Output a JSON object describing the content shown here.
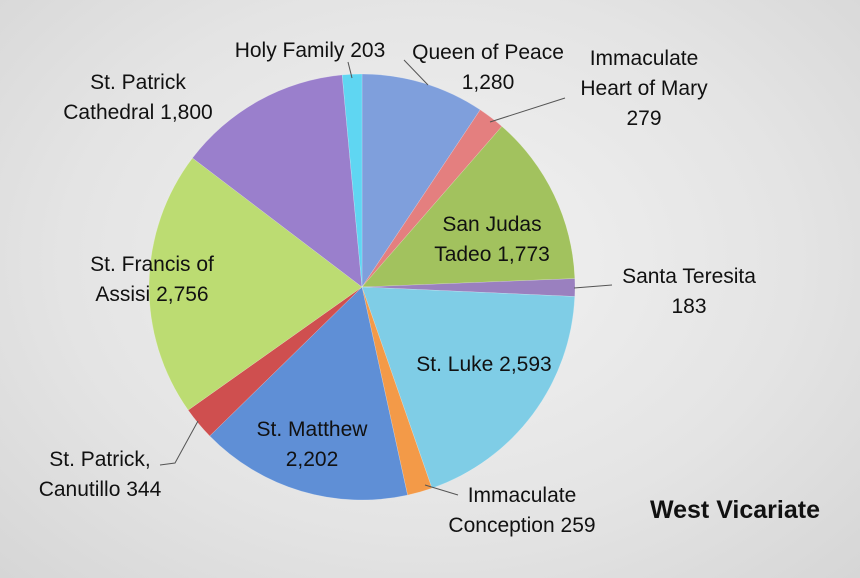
{
  "chart_data": {
    "type": "pie",
    "title": "West Vicariate",
    "categories": [
      "Queen of Peace",
      "Immaculate Heart of Mary",
      "San Judas Tadeo",
      "Santa Teresita",
      "St. Luke",
      "Immaculate Conception",
      "St. Matthew",
      "St. Patrick, Canutillo",
      "St. Francis of Assisi",
      "St. Patrick Cathedral",
      "Holy Family"
    ],
    "values": [
      1280,
      279,
      1773,
      183,
      2593,
      259,
      2202,
      344,
      2756,
      1800,
      203
    ],
    "value_labels": [
      "1,280",
      "279",
      "1,773",
      "183",
      "2,593",
      "259",
      "2,202",
      "344",
      "2,756",
      "1,800",
      "203"
    ],
    "colors": [
      "#7f9fdc",
      "#e47f7f",
      "#a2c25e",
      "#9a80bf",
      "#7fcde6",
      "#f39a48",
      "#5f8fd6",
      "#cf4f4f",
      "#bcdc72",
      "#9a7fcc",
      "#5fd6f2"
    ]
  }
}
